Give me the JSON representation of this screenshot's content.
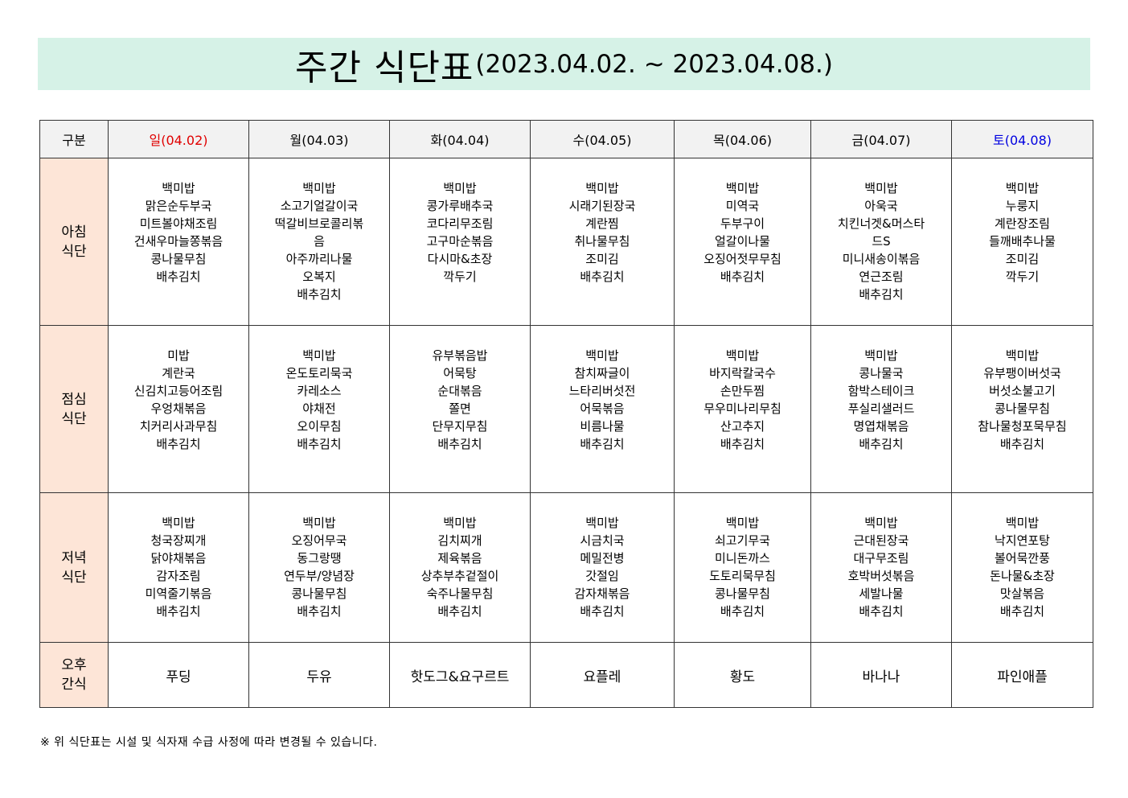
{
  "title": {
    "main": "주간 식단표",
    "range": "(2023.04.02. ~ 2023.04.08.)"
  },
  "colors": {
    "title_band": "#d6f2e7",
    "label_column": "#fde5d7",
    "header_row": "#f2f2f2",
    "sunday": "#e00000",
    "saturday": "#0000e0"
  },
  "table": {
    "corner": "구분",
    "days": [
      "일(04.02)",
      "월(04.03)",
      "화(04.04)",
      "수(04.05)",
      "목(04.06)",
      "금(04.07)",
      "토(04.08)"
    ],
    "rows": [
      {
        "label": "아침\n식단",
        "type": "menu",
        "cells": [
          [
            "백미밥",
            "맑은순두부국",
            "미트볼야채조림",
            "건새우마늘쫑볶음",
            "콩나물무침",
            "배추김치"
          ],
          [
            "백미밥",
            "소고기얼갈이국",
            "떡갈비브로콜리볶음",
            "아주까리나물",
            "오복지",
            "배추김치"
          ],
          [
            "백미밥",
            "콩가루배추국",
            "코다리무조림",
            "고구마순볶음",
            "다시마&초장",
            "깍두기"
          ],
          [
            "백미밥",
            "시래기된장국",
            "계란찜",
            "취나물무침",
            "조미김",
            "배추김치"
          ],
          [
            "백미밥",
            "미역국",
            "두부구이",
            "얼갈이나물",
            "오징어젓무무침",
            "배추김치"
          ],
          [
            "백미밥",
            "아욱국",
            "치킨너겟&머스타드S",
            "미니새송이볶음",
            "연근조림",
            "배추김치"
          ],
          [
            "백미밥",
            "누룽지",
            "계란장조림",
            "들깨배추나물",
            "조미김",
            "깍두기"
          ]
        ]
      },
      {
        "label": "점심\n식단",
        "type": "menu",
        "cells": [
          [
            "미밥",
            "계란국",
            "신김치고등어조림",
            "우엉채볶음",
            "치커리사과무침",
            "배추김치"
          ],
          [
            "백미밥",
            "온도토리묵국",
            "카레소스",
            "야채전",
            "오이무침",
            "배추김치"
          ],
          [
            "유부볶음밥",
            "어묵탕",
            "순대볶음",
            "쫄면",
            "단무지무침",
            "배추김치"
          ],
          [
            "백미밥",
            "참치짜글이",
            "느타리버섯전",
            "어묵볶음",
            "비름나물",
            "배추김치"
          ],
          [
            "백미밥",
            "바지락칼국수",
            "손만두찜",
            "무우미나리무침",
            "산고추지",
            "배추김치"
          ],
          [
            "백미밥",
            "콩나물국",
            "함박스테이크",
            "푸실리샐러드",
            "명엽채볶음",
            "배추김치"
          ],
          [
            "백미밥",
            "유부팽이버섯국",
            "버섯소불고기",
            "콩나물무침",
            "참나물청포묵무침",
            "배추김치"
          ]
        ]
      },
      {
        "label": "저녁\n식단",
        "type": "menu",
        "cells": [
          [
            "백미밥",
            "청국장찌개",
            "닭야채볶음",
            "감자조림",
            "미역줄기볶음",
            "배추김치"
          ],
          [
            "백미밥",
            "오징어무국",
            "동그랑땡",
            "연두부/양념장",
            "콩나물무침",
            "배추김치"
          ],
          [
            "백미밥",
            "김치찌개",
            "제육볶음",
            "상추부추겉절이",
            "숙주나물무침",
            "배추김치"
          ],
          [
            "백미밥",
            "시금치국",
            "메밀전병",
            "갓절임",
            "감자채볶음",
            "배추김치"
          ],
          [
            "백미밥",
            "쇠고기무국",
            "미니돈까스",
            "도토리묵무침",
            "콩나물무침",
            "배추김치"
          ],
          [
            "백미밥",
            "근대된장국",
            "대구무조림",
            "호박버섯볶음",
            "세발나물",
            "배추김치"
          ],
          [
            "백미밥",
            "낙지연포탕",
            "볼어묵깐풍",
            "돈나물&초장",
            "맛살볶음",
            "배추김치"
          ]
        ]
      },
      {
        "label": "오후\n간식",
        "type": "snack",
        "cells": [
          "푸딩",
          "두유",
          "핫도그&요구르트",
          "요플레",
          "황도",
          "바나나",
          "파인애플"
        ]
      }
    ]
  },
  "note": "※ 위 식단표는 시설 및 식자재 수급 사정에 따라 변경될 수 있습니다."
}
